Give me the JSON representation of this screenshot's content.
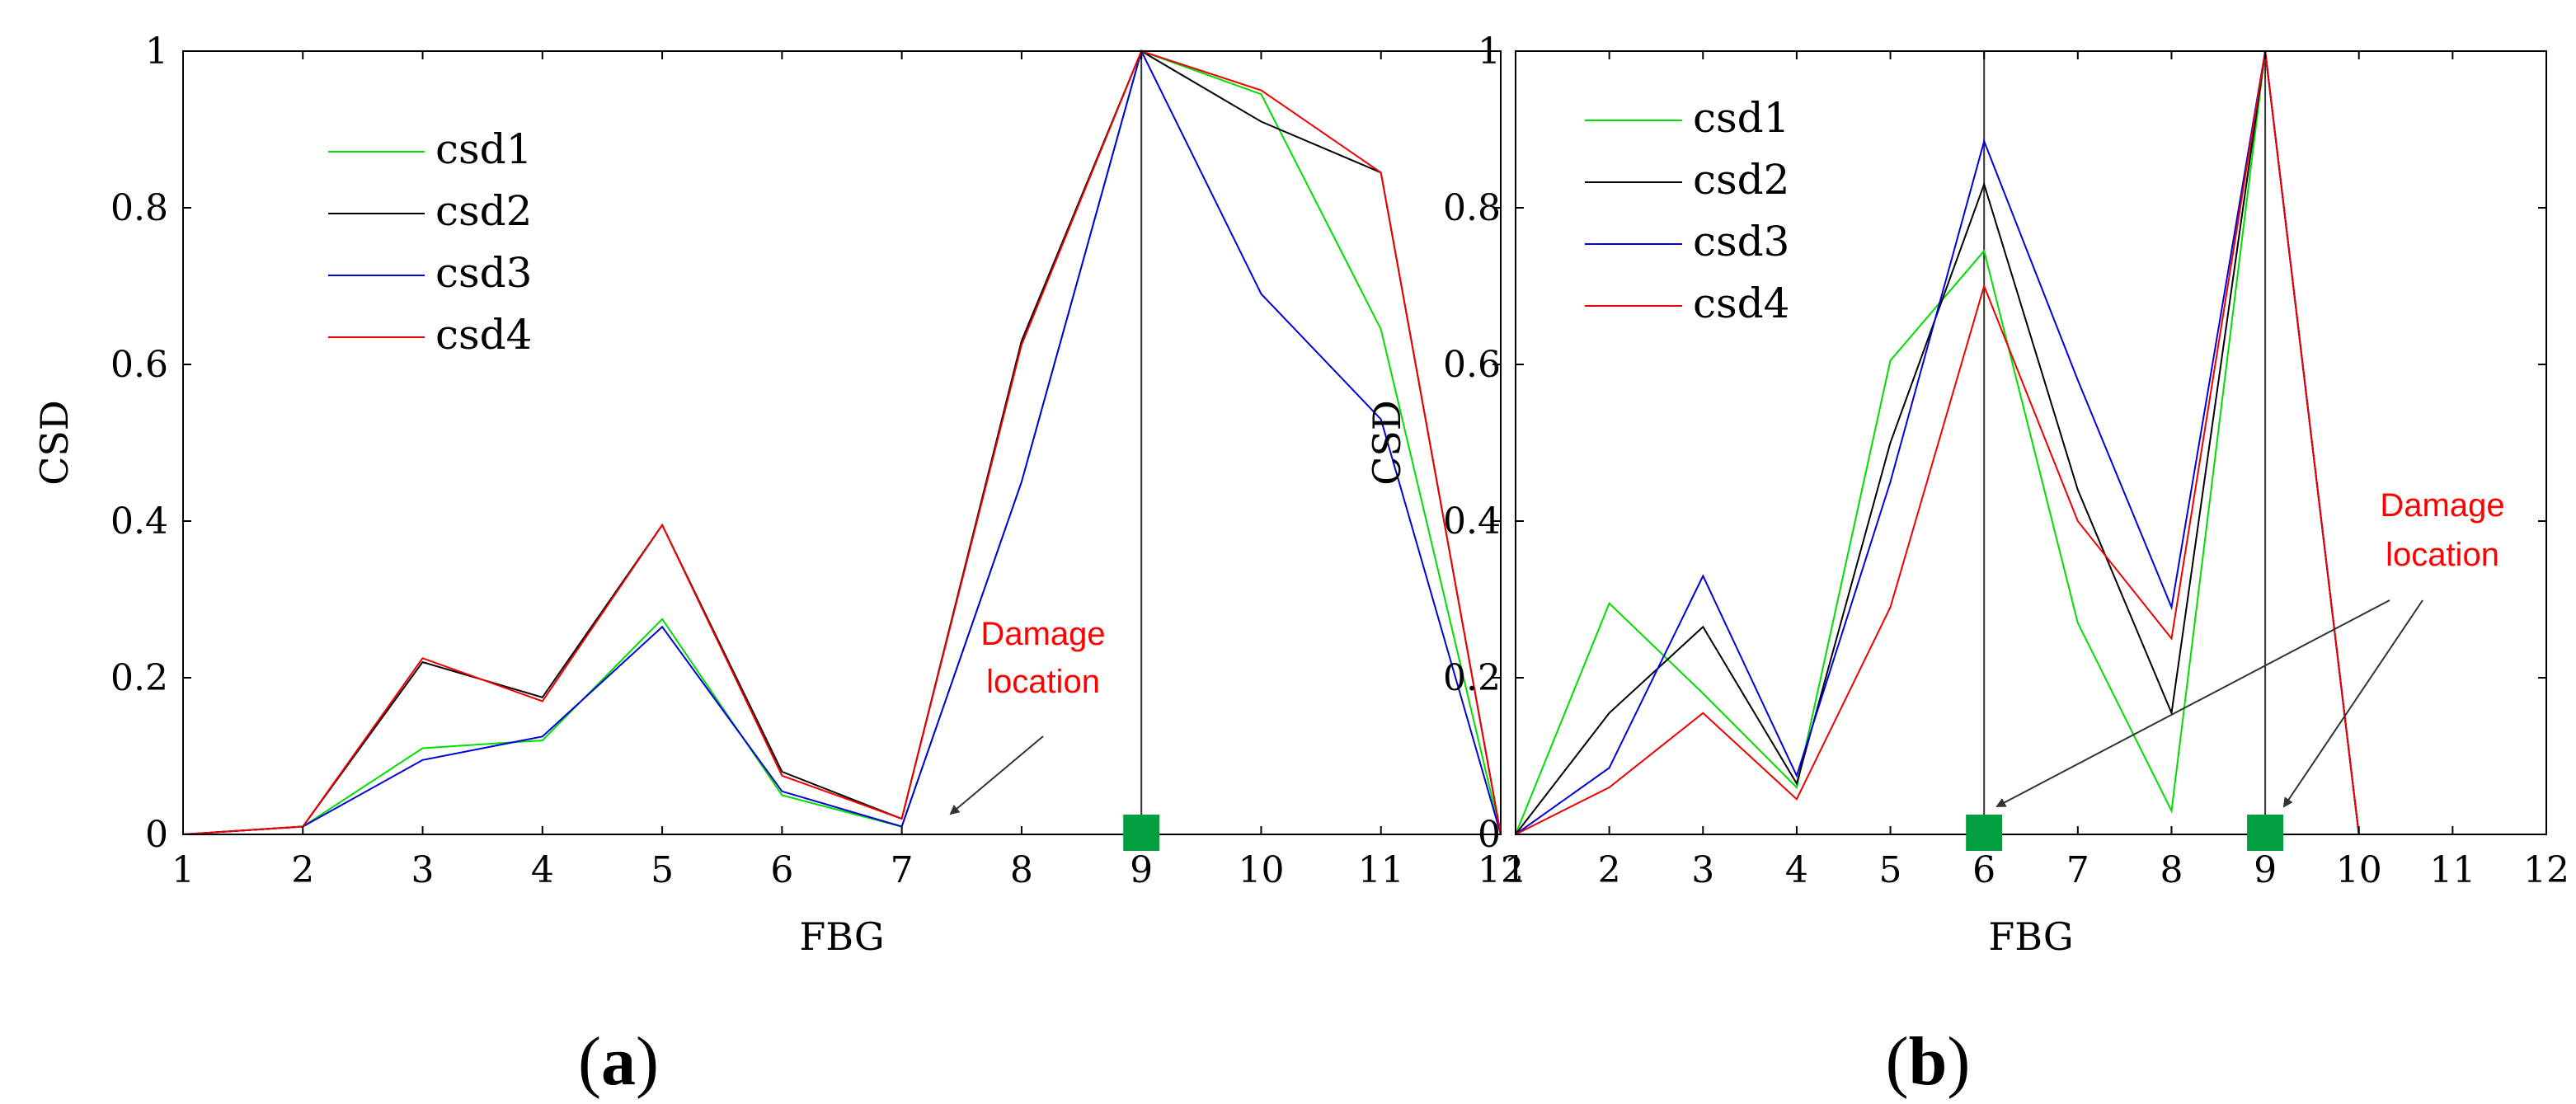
{
  "chart_data": [
    {
      "type": "line",
      "panel_label": "(a)",
      "xlabel": "FBG",
      "ylabel": "CSD",
      "xlim": [
        1,
        12
      ],
      "ylim": [
        0,
        1
      ],
      "x": [
        1,
        2,
        3,
        4,
        5,
        6,
        7,
        8,
        9,
        10,
        11,
        12
      ],
      "xticks": [
        "1",
        "2",
        "3",
        "4",
        "5",
        "6",
        "7",
        "8",
        "9",
        "10",
        "11",
        "12"
      ],
      "yticks": [
        "0",
        "0.2",
        "0.4",
        "0.6",
        "0.8",
        "1"
      ],
      "legend_position": "upper-left",
      "series": [
        {
          "name": "csd1",
          "color": "#00dd00",
          "values": [
            0,
            0.01,
            0.11,
            0.12,
            0.275,
            0.05,
            0.01,
            0.45,
            1.0,
            0.945,
            0.645,
            0
          ]
        },
        {
          "name": "csd2",
          "color": "#000000",
          "values": [
            0,
            0.01,
            0.22,
            0.175,
            0.395,
            0.08,
            0.02,
            0.63,
            1.0,
            0.91,
            0.845,
            0
          ]
        },
        {
          "name": "csd3",
          "color": "#0000dd",
          "values": [
            0,
            0.01,
            0.095,
            0.125,
            0.265,
            0.055,
            0.01,
            0.45,
            1.0,
            0.69,
            0.53,
            0
          ]
        },
        {
          "name": "csd4",
          "color": "#ee0000",
          "values": [
            0,
            0.01,
            0.225,
            0.17,
            0.395,
            0.075,
            0.02,
            0.625,
            1.0,
            0.95,
            0.845,
            0
          ]
        }
      ],
      "damage_markers": [
        9
      ],
      "annotation": {
        "line1": "Damage",
        "line2": "location"
      }
    },
    {
      "type": "line",
      "panel_label": "(b)",
      "xlabel": "FBG",
      "ylabel": "CSD",
      "xlim": [
        1,
        12
      ],
      "ylim": [
        0,
        1
      ],
      "x": [
        1,
        2,
        3,
        4,
        5,
        6,
        7,
        8,
        9,
        10,
        11,
        12
      ],
      "xticks": [
        "1",
        "2",
        "3",
        "4",
        "5",
        "6",
        "7",
        "8",
        "9",
        "10",
        "11",
        "12"
      ],
      "yticks": [
        "0",
        "0.2",
        "0.4",
        "0.6",
        "0.8",
        "1"
      ],
      "legend_position": "upper-left",
      "series": [
        {
          "name": "csd1",
          "color": "#00dd00",
          "values": [
            0,
            0.295,
            0.18,
            0.06,
            0.605,
            0.745,
            0.27,
            0.03,
            1.0,
            0,
            0,
            0
          ]
        },
        {
          "name": "csd2",
          "color": "#000000",
          "values": [
            0,
            0.155,
            0.265,
            0.065,
            0.5,
            0.83,
            0.44,
            0.155,
            1.0,
            0,
            0,
            0
          ]
        },
        {
          "name": "csd3",
          "color": "#0000dd",
          "values": [
            0,
            0.085,
            0.33,
            0.075,
            0.45,
            0.885,
            0.58,
            0.29,
            1.0,
            0,
            0,
            0
          ]
        },
        {
          "name": "csd4",
          "color": "#ee0000",
          "values": [
            0,
            0.06,
            0.155,
            0.045,
            0.29,
            0.7,
            0.4,
            0.25,
            1.0,
            0,
            0,
            0
          ]
        }
      ],
      "damage_markers": [
        6,
        9
      ],
      "annotation": {
        "line1": "Damage",
        "line2": "location"
      }
    }
  ],
  "marker_color": "#00a040"
}
